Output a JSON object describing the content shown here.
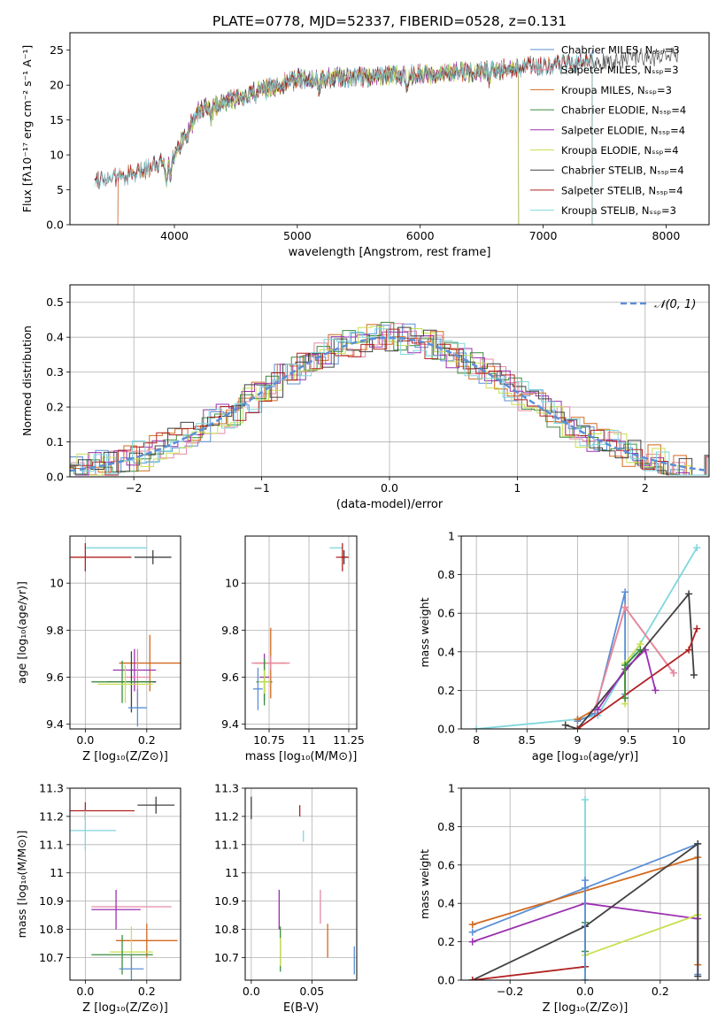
{
  "chart_data": [
    {
      "id": "spectrum",
      "type": "line",
      "title": "PLATE=0778, MJD=52337, FIBERID=0528, z=0.131",
      "xlabel": "wavelength [Angstrom, rest frame]",
      "ylabel": "Flux [fλ10⁻¹⁷ erg cm⁻² s⁻¹ A⁻¹]",
      "xlim": [
        3150,
        8350
      ],
      "ylim": [
        0,
        27.5
      ],
      "xticks": [
        4000,
        5000,
        6000,
        7000,
        8000
      ],
      "yticks": [
        0,
        5,
        10,
        15,
        20,
        25
      ],
      "grid": false,
      "legend_position": "upper-right",
      "series": [
        {
          "name": "Chabrier MILES, Nₛₛₚ=3",
          "color": "#5a8fd6",
          "x_range": [
            3350,
            7400
          ],
          "jump_x": [
            3540,
            3930
          ]
        },
        {
          "name": "Salpeter MILES, Nₛₛₚ=3",
          "color": "#e58aa6",
          "x_range": [
            3350,
            7400
          ],
          "jump_x": [
            3540,
            3930
          ]
        },
        {
          "name": "Kroupa MILES, Nₛₛₚ=3",
          "color": "#d2691e",
          "x_range": [
            3350,
            7400
          ],
          "jump_x": [
            3540,
            3930
          ]
        },
        {
          "name": "Chabrier ELODIE, Nₛₛₚ=4",
          "color": "#3c8c3c",
          "x_range": [
            3900,
            6800
          ]
        },
        {
          "name": "Salpeter ELODIE, Nₛₛₚ=4",
          "color": "#9b30b0",
          "x_range": [
            3900,
            6800
          ]
        },
        {
          "name": "Kroupa ELODIE, Nₛₛₚ=4",
          "color": "#c8e050",
          "x_range": [
            3900,
            6800
          ]
        },
        {
          "name": "Chabrier STELIB, Nₛₛₚ=4",
          "color": "#404040",
          "x_range": [
            3350,
            8100
          ]
        },
        {
          "name": "Salpeter STELIB, Nₛₛₚ=4",
          "color": "#b22222",
          "x_range": [
            3350,
            7400
          ]
        },
        {
          "name": "Kroupa STELIB, Nₛₛₚ=3",
          "color": "#7fd6dc",
          "x_range": [
            3350,
            7400
          ]
        }
      ]
    },
    {
      "id": "residuals",
      "type": "line",
      "xlabel": "(data-model)/error",
      "ylabel": "Normed distribution",
      "xlim": [
        -2.5,
        2.5
      ],
      "ylim": [
        0,
        0.55
      ],
      "xticks": [
        -2,
        -1,
        0,
        1,
        2
      ],
      "yticks": [
        0.0,
        0.1,
        0.2,
        0.3,
        0.4,
        0.5
      ],
      "grid": true,
      "legend_position": "upper-right",
      "legend_label": "𝒩(0, 1)",
      "gaussian": {
        "mean": 0,
        "sigma": 1,
        "color": "#5a8fd6"
      },
      "bin_width": 0.1
    },
    {
      "id": "age-vs-Z",
      "type": "scatter",
      "xlabel": "Z [log₁₀(Z/Z⊙)]",
      "ylabel": "age  [log₁₀(age/yr)]",
      "xlim": [
        -0.05,
        0.31
      ],
      "ylim": [
        9.38,
        10.2
      ],
      "xticks": [
        0.0,
        0.2
      ],
      "yticks": [
        9.4,
        9.6,
        9.8,
        10.0
      ],
      "grid": true,
      "points": [
        {
          "x": 0.1,
          "y": 10.15,
          "xerr": 0.1,
          "yerr": 0.0,
          "color": "#7fd6dc"
        },
        {
          "x": 0.22,
          "y": 10.11,
          "xerr": 0.06,
          "yerr": 0.03,
          "color": "#404040"
        },
        {
          "x": 0.0,
          "y": 10.11,
          "xerr": 0.15,
          "yerr": 0.06,
          "color": "#b22222"
        },
        {
          "x": 0.21,
          "y": 9.66,
          "xerr": 0.1,
          "yerr": 0.12,
          "color": "#d2691e"
        },
        {
          "x": 0.16,
          "y": 9.63,
          "xerr": 0.07,
          "yerr": 0.09,
          "color": "#9b30b0"
        },
        {
          "x": 0.17,
          "y": 9.6,
          "xerr": 0.04,
          "yerr": 0.12,
          "color": "#e58aa6"
        },
        {
          "x": 0.15,
          "y": 9.58,
          "xerr": 0.08,
          "yerr": 0.13,
          "color": "#404040"
        },
        {
          "x": 0.12,
          "y": 9.58,
          "xerr": 0.1,
          "yerr": 0.09,
          "color": "#3c8c3c"
        },
        {
          "x": 0.13,
          "y": 9.57,
          "xerr": 0.09,
          "yerr": 0.08,
          "color": "#c8e050"
        },
        {
          "x": 0.17,
          "y": 9.47,
          "xerr": 0.03,
          "yerr": 0.08,
          "color": "#5a8fd6"
        }
      ]
    },
    {
      "id": "age-vs-mass",
      "type": "scatter",
      "xlabel": "mass [log₁₀(M/M⊙)]",
      "ylabel": "",
      "xlim": [
        10.6,
        11.3
      ],
      "ylim": [
        9.38,
        10.2
      ],
      "xticks": [
        10.75,
        11.0,
        11.25
      ],
      "yticks": [
        9.4,
        9.6,
        9.8,
        10.0
      ],
      "grid": true,
      "points": [
        {
          "x": 11.17,
          "y": 10.15,
          "xerr": 0.04,
          "yerr": 0.0,
          "color": "#7fd6dc"
        },
        {
          "x": 11.22,
          "y": 10.11,
          "xerr": 0.02,
          "yerr": 0.03,
          "color": "#404040"
        },
        {
          "x": 11.21,
          "y": 10.11,
          "xerr": 0.04,
          "yerr": 0.06,
          "color": "#b22222"
        },
        {
          "x": 10.76,
          "y": 9.66,
          "xerr": 0.1,
          "yerr": 0.15,
          "color": "#d2691e"
        },
        {
          "x": 10.76,
          "y": 9.66,
          "xerr": 0.12,
          "yerr": 0.03,
          "color": "#e58aa6"
        },
        {
          "x": 10.72,
          "y": 9.6,
          "xerr": 0.03,
          "yerr": 0.1,
          "color": "#9b30b0"
        },
        {
          "x": 10.72,
          "y": 9.58,
          "xerr": 0.05,
          "yerr": 0.1,
          "color": "#3c8c3c"
        },
        {
          "x": 10.72,
          "y": 9.58,
          "xerr": 0.04,
          "yerr": 0.05,
          "color": "#c8e050"
        },
        {
          "x": 10.68,
          "y": 9.55,
          "xerr": 0.03,
          "yerr": 0.09,
          "color": "#5a8fd6"
        }
      ]
    },
    {
      "id": "weight-vs-age",
      "type": "line",
      "xlabel": "age  [log₁₀(age/yr)]",
      "ylabel": "mass weight",
      "xlim": [
        7.85,
        10.3
      ],
      "ylim": [
        0,
        1.0
      ],
      "xticks": [
        8.0,
        8.5,
        9.0,
        9.5,
        10.0
      ],
      "yticks": [
        0.0,
        0.2,
        0.4,
        0.6,
        0.8,
        1.0
      ],
      "grid": true,
      "series": [
        {
          "color": "#7fd6dc",
          "points": [
            [
              8.0,
              0.0
            ],
            [
              9.0,
              0.05
            ],
            [
              9.2,
              0.07
            ],
            [
              10.18,
              0.94
            ]
          ]
        },
        {
          "color": "#5a8fd6",
          "points": [
            [
              9.0,
              0.04
            ],
            [
              9.17,
              0.08
            ],
            [
              9.47,
              0.71
            ],
            [
              9.47,
              0.18
            ]
          ]
        },
        {
          "color": "#d2691e",
          "points": [
            [
              9.0,
              0.05
            ],
            [
              9.17,
              0.1
            ],
            [
              9.47,
              0.63
            ],
            [
              9.95,
              0.29
            ]
          ]
        },
        {
          "color": "#e58aa6",
          "points": [
            [
              9.17,
              0.1
            ],
            [
              9.47,
              0.63
            ],
            [
              9.95,
              0.29
            ]
          ]
        },
        {
          "color": "#404040",
          "points": [
            [
              8.88,
              0.02
            ],
            [
              9.0,
              0.0
            ],
            [
              10.1,
              0.7
            ],
            [
              10.15,
              0.28
            ]
          ]
        },
        {
          "color": "#b22222",
          "points": [
            [
              9.0,
              0.0
            ],
            [
              10.1,
              0.41
            ],
            [
              10.18,
              0.52
            ]
          ]
        },
        {
          "color": "#9b30b0",
          "points": [
            [
              9.2,
              0.1
            ],
            [
              9.47,
              0.31
            ],
            [
              9.67,
              0.41
            ],
            [
              9.77,
              0.2
            ]
          ]
        },
        {
          "color": "#c8e050",
          "points": [
            [
              9.47,
              0.13
            ],
            [
              9.47,
              0.34
            ],
            [
              9.62,
              0.44
            ]
          ]
        },
        {
          "color": "#3c8c3c",
          "points": [
            [
              9.47,
              0.16
            ],
            [
              9.47,
              0.33
            ],
            [
              9.62,
              0.41
            ]
          ]
        }
      ]
    },
    {
      "id": "mass-vs-Z",
      "type": "scatter",
      "xlabel": "Z [log₁₀(Z/Z⊙)]",
      "ylabel": "mass [log₁₀(M/M⊙)]",
      "xlim": [
        -0.05,
        0.31
      ],
      "ylim": [
        10.62,
        11.3
      ],
      "xticks": [
        0.0,
        0.2
      ],
      "yticks": [
        10.7,
        10.8,
        10.9,
        11.0,
        11.1,
        11.2,
        11.3
      ],
      "grid": true,
      "points": [
        {
          "x": 0.23,
          "y": 11.24,
          "xerr": 0.06,
          "yerr": 0.03,
          "color": "#404040"
        },
        {
          "x": 0.0,
          "y": 11.22,
          "xerr": 0.16,
          "yerr": 0.03,
          "color": "#b22222"
        },
        {
          "x": 0.0,
          "y": 11.15,
          "xerr": 0.1,
          "yerr": 0.07,
          "color": "#7fd6dc"
        },
        {
          "x": 0.15,
          "y": 10.88,
          "xerr": 0.13,
          "yerr": 0.0,
          "color": "#e58aa6"
        },
        {
          "x": 0.1,
          "y": 10.87,
          "xerr": 0.08,
          "yerr": 0.07,
          "color": "#9b30b0"
        },
        {
          "x": 0.2,
          "y": 10.76,
          "xerr": 0.1,
          "yerr": 0.06,
          "color": "#d2691e"
        },
        {
          "x": 0.15,
          "y": 10.72,
          "xerr": 0.07,
          "yerr": 0.09,
          "color": "#c8e050"
        },
        {
          "x": 0.12,
          "y": 10.71,
          "xerr": 0.1,
          "yerr": 0.07,
          "color": "#3c8c3c"
        },
        {
          "x": 0.15,
          "y": 10.66,
          "xerr": 0.04,
          "yerr": 0.05,
          "color": "#5a8fd6"
        }
      ]
    },
    {
      "id": "mass-vs-EBV",
      "type": "scatter",
      "xlabel": "E(B-V)",
      "ylabel": "",
      "xlim": [
        -0.005,
        0.087
      ],
      "ylim": [
        10.62,
        11.3
      ],
      "xticks": [
        0.0,
        0.05
      ],
      "yticks": [
        10.7,
        10.8,
        10.9,
        11.0,
        11.1,
        11.2,
        11.3
      ],
      "grid": true,
      "points": [
        {
          "x": 0.0,
          "y": 11.23,
          "xerr": 0,
          "yerr": 0.04,
          "color": "#404040"
        },
        {
          "x": 0.04,
          "y": 11.22,
          "xerr": 0,
          "yerr": 0.02,
          "color": "#b22222"
        },
        {
          "x": 0.043,
          "y": 11.13,
          "xerr": 0,
          "yerr": 0.02,
          "color": "#7fd6dc"
        },
        {
          "x": 0.023,
          "y": 10.87,
          "xerr": 0,
          "yerr": 0.07,
          "color": "#9b30b0"
        },
        {
          "x": 0.057,
          "y": 10.88,
          "xerr": 0,
          "yerr": 0.06,
          "color": "#e58aa6"
        },
        {
          "x": 0.063,
          "y": 10.76,
          "xerr": 0,
          "yerr": 0.06,
          "color": "#d2691e"
        },
        {
          "x": 0.024,
          "y": 10.73,
          "xerr": 0,
          "yerr": 0.08,
          "color": "#3c8c3c"
        },
        {
          "x": 0.024,
          "y": 10.72,
          "xerr": 0,
          "yerr": 0.05,
          "color": "#c8e050"
        },
        {
          "x": 0.085,
          "y": 10.69,
          "xerr": 0,
          "yerr": 0.05,
          "color": "#5a8fd6"
        }
      ]
    },
    {
      "id": "weight-vs-Z",
      "type": "line",
      "xlabel": "Z [log₁₀(Z/Z⊙)]",
      "ylabel": "mass weight",
      "xlim": [
        -0.33,
        0.33
      ],
      "ylim": [
        0,
        1.0
      ],
      "xticks": [
        -0.2,
        0.0,
        0.2
      ],
      "yticks": [
        0.0,
        0.2,
        0.4,
        0.6,
        0.8,
        1.0
      ],
      "grid": true,
      "series": [
        {
          "color": "#7fd6dc",
          "points": [
            [
              0.0,
              0.0
            ],
            [
              0.0,
              0.94
            ]
          ]
        },
        {
          "color": "#3c8c3c",
          "points": [
            [
              0.0,
              0.15
            ],
            [
              0.0,
              0.3
            ]
          ]
        },
        {
          "color": "#5a8fd6",
          "points": [
            [
              -0.3,
              0.25
            ],
            [
              0.0,
              0.48
            ],
            [
              0.3,
              0.71
            ],
            [
              0.3,
              0.03
            ]
          ]
        },
        {
          "color": "#d2691e",
          "points": [
            [
              -0.3,
              0.29
            ],
            [
              0.3,
              0.64
            ],
            [
              0.3,
              0.08
            ]
          ]
        },
        {
          "color": "#9b30b0",
          "points": [
            [
              -0.3,
              0.2
            ],
            [
              0.0,
              0.4
            ],
            [
              0.3,
              0.32
            ]
          ]
        },
        {
          "color": "#c8e050",
          "points": [
            [
              0.0,
              0.13
            ],
            [
              0.3,
              0.34
            ]
          ]
        },
        {
          "color": "#404040",
          "points": [
            [
              -0.3,
              0.0
            ],
            [
              0.0,
              0.28
            ],
            [
              0.3,
              0.71
            ],
            [
              0.3,
              0.02
            ]
          ]
        },
        {
          "color": "#b22222",
          "points": [
            [
              -0.3,
              0.0
            ],
            [
              0.0,
              0.07
            ]
          ]
        },
        {
          "color": "#5a8fd6",
          "points": [
            [
              0.0,
              0.52
            ],
            [
              0.0,
              0.0
            ]
          ]
        }
      ]
    }
  ]
}
